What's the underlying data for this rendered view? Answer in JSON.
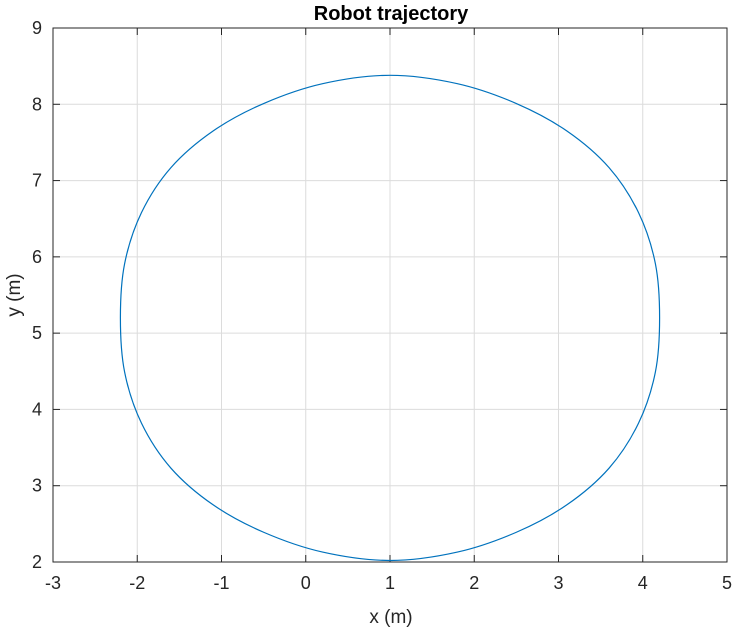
{
  "chart_data": {
    "type": "line",
    "title": "Robot trajectory",
    "xlabel": "x (m)",
    "ylabel": "y (m)",
    "xlim": [
      -3,
      5
    ],
    "ylim": [
      2,
      9
    ],
    "xticks": [
      "-3",
      "-2",
      "-1",
      "0",
      "1",
      "2",
      "3",
      "4",
      "5"
    ],
    "yticks": [
      "2",
      "3",
      "4",
      "5",
      "6",
      "7",
      "8",
      "9"
    ],
    "grid": true,
    "series": [
      {
        "color": "#0072BD",
        "x": [
          1.0,
          1.8,
          2.5,
          3.1,
          3.6,
          3.95,
          4.15,
          4.2,
          4.15,
          3.95,
          3.6,
          3.1,
          2.5,
          1.8,
          1.0,
          0.2,
          -0.5,
          -1.1,
          -1.6,
          -1.95,
          -2.15,
          -2.2,
          -2.15,
          -1.95,
          -1.6,
          -1.1,
          -0.5,
          0.2,
          1.0
        ],
        "y": [
          8.38,
          8.27,
          8.01,
          7.65,
          7.17,
          6.58,
          5.91,
          5.2,
          4.49,
          3.82,
          3.23,
          2.75,
          2.39,
          2.13,
          2.02,
          2.13,
          2.39,
          2.75,
          3.23,
          3.82,
          4.49,
          5.2,
          5.91,
          6.58,
          7.17,
          7.65,
          8.01,
          8.27,
          8.38
        ]
      }
    ]
  }
}
